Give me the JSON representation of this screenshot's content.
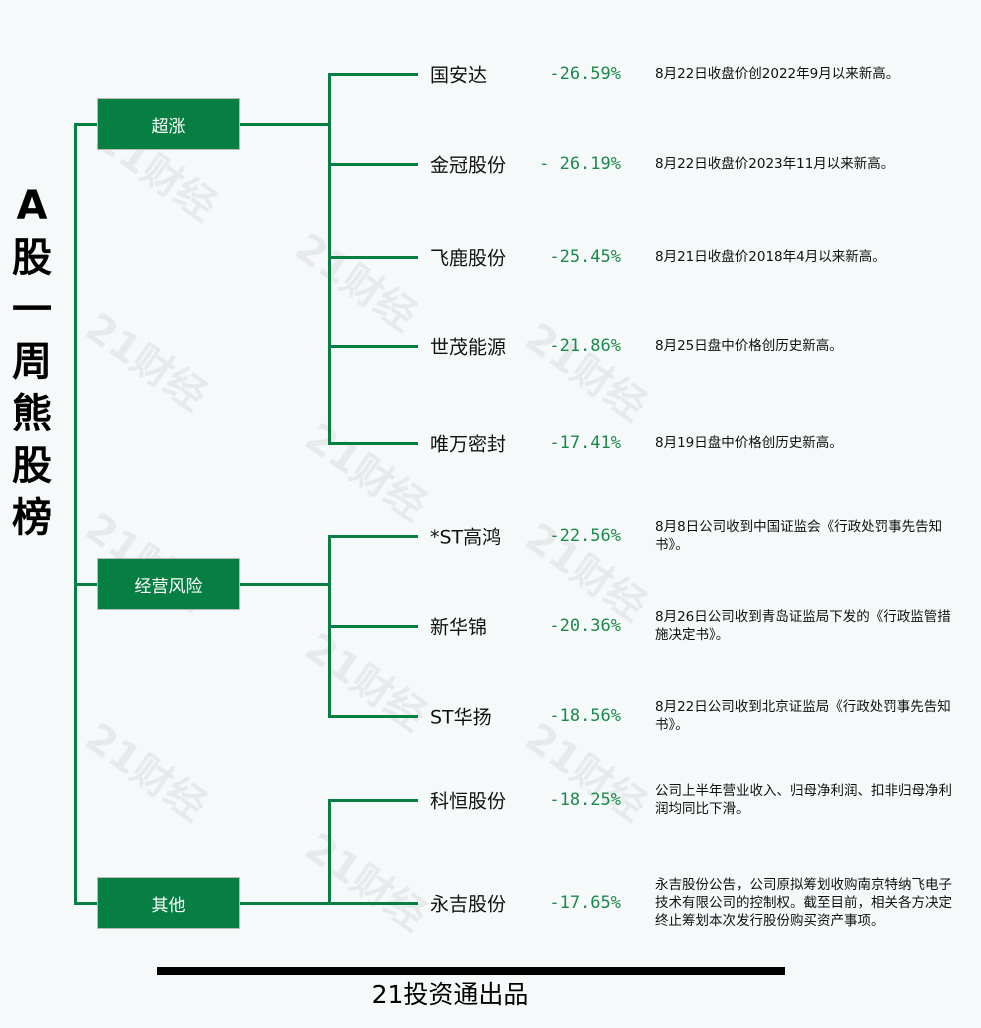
{
  "title_chars": [
    "A",
    "股",
    "一",
    "周",
    "熊",
    "股",
    "榜"
  ],
  "watermark": "21财经",
  "accent_color": "#077f42",
  "groups": [
    {
      "label": "超涨",
      "items": [
        {
          "name": "国安达",
          "pct": "-26.59%",
          "desc": "8月22日收盘价创2022年9月以来新高。"
        },
        {
          "name": "金冠股份",
          "pct": "- 26.19%",
          "desc": "8月22日收盘价2023年11月以来新高。"
        },
        {
          "name": "飞鹿股份",
          "pct": "-25.45%",
          "desc": "8月21日收盘价2018年4月以来新高。"
        },
        {
          "name": "世茂能源",
          "pct": "-21.86%",
          "desc": "8月25日盘中价格创历史新高。"
        },
        {
          "name": "唯万密封",
          "pct": "-17.41%",
          "desc": "8月19日盘中价格创历史新高。"
        }
      ]
    },
    {
      "label": "经营风险",
      "items": [
        {
          "name": "*ST高鸿",
          "pct": "-22.56%",
          "desc": "8月8日公司收到中国证监会《行政处罚事先告知书》。"
        },
        {
          "name": "新华锦",
          "pct": "-20.36%",
          "desc": "8月26日公司收到青岛证监局下发的《行政监管措施决定书》。"
        },
        {
          "name": "ST华扬",
          "pct": "-18.56%",
          "desc": "8月22日公司收到北京证监局《行政处罚事先告知书》。"
        }
      ]
    },
    {
      "label": "其他",
      "items": [
        {
          "name": "科恒股份",
          "pct": "-18.25%",
          "desc": "公司上半年营业收入、归母净利润、扣非归母净利润均同比下滑。"
        },
        {
          "name": "永吉股份",
          "pct": "-17.65%",
          "desc": "永吉股份公告，公司原拟筹划收购南京特纳飞电子技术有限公司的控制权。截至目前，相关各方决定终止筹划本次发行股份购买资产事项。"
        }
      ]
    }
  ],
  "footer": "21投资通出品"
}
